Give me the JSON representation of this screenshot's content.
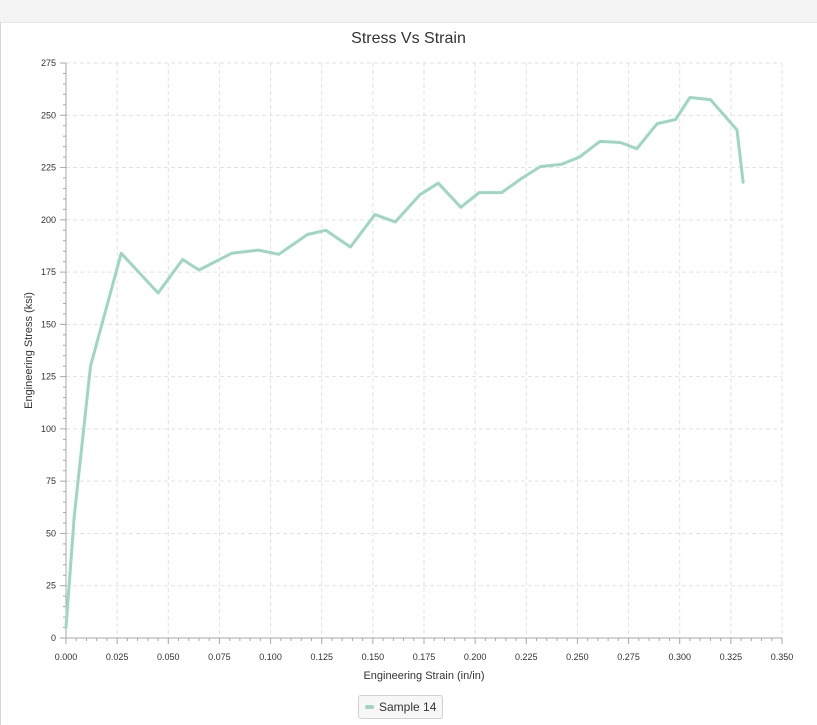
{
  "colors": {
    "series": "#9ed6c4",
    "grid": "#e2e2e2",
    "axis": "#a8a8a8",
    "background": "#ffffff"
  },
  "chart_data": {
    "type": "line",
    "title": "Stress Vs Strain",
    "xlabel": "Engineering Strain (in/in)",
    "ylabel": "Engineering Stress (ksi)",
    "xlim": [
      0,
      0.35
    ],
    "ylim": [
      0,
      275
    ],
    "x_ticks": [
      "0.000",
      "0.025",
      "0.050",
      "0.075",
      "0.100",
      "0.125",
      "0.150",
      "0.175",
      "0.200",
      "0.225",
      "0.250",
      "0.275",
      "0.300",
      "0.325",
      "0.350"
    ],
    "y_ticks": [
      "0",
      "25",
      "50",
      "75",
      "100",
      "125",
      "150",
      "175",
      "200",
      "225",
      "250",
      "275"
    ],
    "grid": true,
    "legend_placement": "bottom-center",
    "series": [
      {
        "name": "Sample 14",
        "x": [
          0.0,
          0.004,
          0.012,
          0.027,
          0.045,
          0.057,
          0.065,
          0.081,
          0.094,
          0.104,
          0.118,
          0.127,
          0.139,
          0.151,
          0.161,
          0.173,
          0.182,
          0.193,
          0.202,
          0.213,
          0.223,
          0.232,
          0.242,
          0.251,
          0.261,
          0.271,
          0.279,
          0.289,
          0.298,
          0.305,
          0.315,
          0.328,
          0.331
        ],
        "y": [
          5,
          58,
          130,
          184,
          165,
          181,
          176,
          184,
          185.5,
          183.5,
          193,
          195,
          187,
          202.5,
          199,
          212,
          217.5,
          206,
          213,
          213,
          220,
          225.5,
          226.5,
          230,
          237.5,
          237,
          234,
          246,
          248,
          258.5,
          257.5,
          243,
          218
        ]
      }
    ]
  }
}
